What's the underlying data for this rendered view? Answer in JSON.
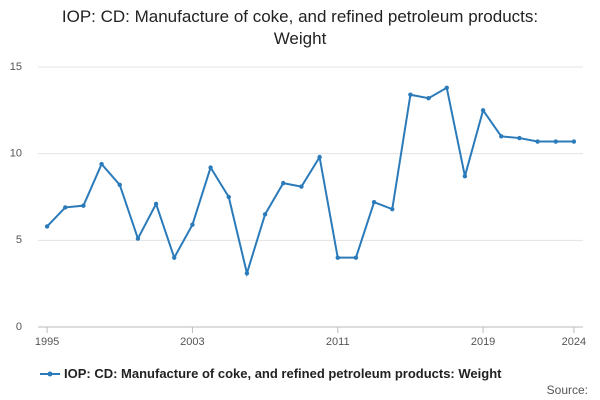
{
  "chart_data": {
    "type": "line",
    "title": "IOP: CD: Manufacture of coke, and refined petroleum products: Weight",
    "x": [
      1995,
      1996,
      1997,
      1998,
      1999,
      2000,
      2001,
      2002,
      2003,
      2004,
      2005,
      2006,
      2007,
      2008,
      2009,
      2010,
      2011,
      2012,
      2013,
      2014,
      2015,
      2016,
      2017,
      2018,
      2019,
      2020,
      2021,
      2022,
      2023,
      2024
    ],
    "series": [
      {
        "name": "IOP: CD: Manufacture of coke, and refined petroleum products: Weight",
        "color": "#2b7bba",
        "values": [
          5.8,
          6.9,
          7.0,
          9.4,
          8.2,
          5.1,
          7.1,
          4.0,
          5.9,
          9.2,
          7.5,
          3.1,
          6.5,
          8.3,
          8.1,
          9.8,
          4.0,
          4.0,
          7.2,
          6.8,
          13.4,
          13.2,
          13.8,
          8.7,
          12.5,
          11.0,
          10.9,
          10.7,
          10.7,
          10.7
        ]
      }
    ],
    "xlim": [
      1994.5,
      2024.5
    ],
    "xticks": [
      1995,
      2003,
      2011,
      2019,
      2024
    ],
    "ylim": [
      0,
      15
    ],
    "yticks": [
      0,
      5,
      10,
      15
    ],
    "grid": true,
    "source": "Source:"
  }
}
